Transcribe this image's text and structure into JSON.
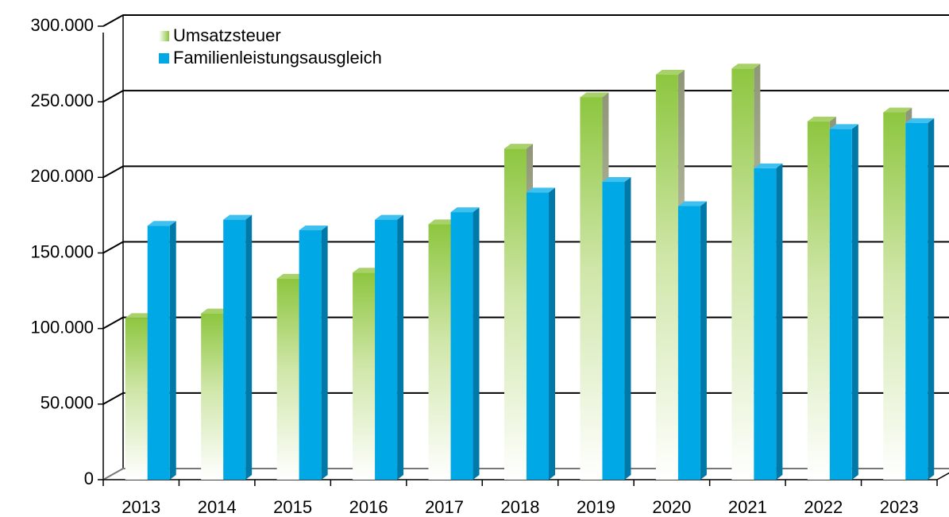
{
  "chart_data": {
    "type": "bar3d",
    "categories": [
      "2013",
      "2014",
      "2015",
      "2016",
      "2017",
      "2018",
      "2019",
      "2020",
      "2021",
      "2022",
      "2023"
    ],
    "series": [
      {
        "name": "Umsatzsteuer",
        "color": "#8dc63f",
        "values": [
          107000,
          110000,
          133000,
          137000,
          169000,
          219000,
          253000,
          268000,
          272000,
          237000,
          243000
        ]
      },
      {
        "name": "Familienleistungsausgleich",
        "color": "#00a9e6",
        "values": [
          168000,
          172000,
          165000,
          172000,
          177000,
          190000,
          197000,
          181000,
          206000,
          232000,
          236000
        ]
      }
    ],
    "ylim": [
      0,
      300000
    ],
    "yticks": [
      0,
      {
        "value": 50000,
        "label": "50.000"
      },
      {
        "value": 100000,
        "label": "100.000"
      },
      {
        "value": 150000,
        "label": "150.000"
      },
      {
        "value": 200000,
        "label": "200.000"
      },
      {
        "value": 250000,
        "label": "250.000"
      },
      {
        "value": 300000,
        "label": "300.000"
      }
    ],
    "grid": true,
    "legend": "top-left"
  }
}
